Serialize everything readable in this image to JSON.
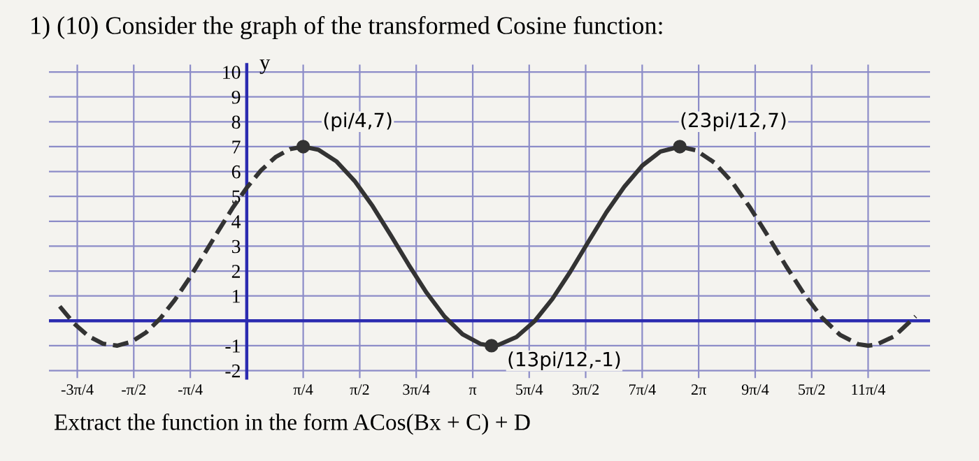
{
  "chart_data": {
    "type": "line",
    "title": "1) (10) Consider the graph of the transformed Cosine function:",
    "ylabel": "y",
    "annotations": [
      "Extract the function in the form ACos(Bx + C) + D",
      {
        "text": "(pi/4,7)",
        "x": 0.785,
        "y": 7
      },
      {
        "text": "(13pi/12,-1)",
        "x": 3.403,
        "y": -1
      },
      {
        "text": "(23pi/12,7)",
        "x": 6.021,
        "y": 7
      }
    ],
    "series": [
      {
        "type": "line",
        "line_style": "dashed",
        "color": "#333333",
        "x": [
          -2.6,
          -2.4,
          -2.2,
          -2.0,
          -1.8,
          -1.6,
          -1.4,
          -1.2,
          -1.0,
          -0.8,
          -0.6,
          -0.4,
          -0.2,
          0,
          0.2,
          0.4,
          0.6,
          0.785
        ],
        "values": [
          0.58,
          -0.11,
          -0.62,
          -0.92,
          -1.0,
          -0.84,
          -0.47,
          0.1,
          0.84,
          1.7,
          2.64,
          3.59,
          4.52,
          5.35,
          6.05,
          6.58,
          6.9,
          7
        ]
      },
      {
        "type": "line",
        "line_style": "solid",
        "color": "#333333",
        "x": [
          0.785,
          1.0,
          1.25,
          1.5,
          1.75,
          2.0,
          2.25,
          2.5,
          2.75,
          3.0,
          3.25,
          3.403,
          3.5,
          3.75,
          4.0,
          4.25,
          4.5,
          4.75,
          5.0,
          5.25,
          5.5,
          5.75,
          6.021
        ],
        "values": [
          7,
          6.87,
          6.4,
          5.62,
          4.61,
          3.45,
          2.26,
          1.13,
          0.17,
          -0.54,
          -0.93,
          -1,
          -0.97,
          -0.65,
          -0.02,
          0.88,
          1.98,
          3.18,
          4.36,
          5.39,
          6.24,
          6.8,
          7
        ]
      },
      {
        "type": "line",
        "line_style": "dashed",
        "color": "#333333",
        "x": [
          6.021,
          6.25,
          6.5,
          6.75,
          7.0,
          7.25,
          7.5,
          7.75,
          8.0,
          8.25,
          8.5,
          8.639,
          8.75,
          9.0,
          9.3
        ],
        "values": [
          7,
          6.85,
          6.36,
          5.57,
          4.54,
          3.39,
          2.19,
          1.07,
          0.12,
          -0.57,
          -0.94,
          -1,
          -0.96,
          -0.63,
          0.18
        ]
      },
      {
        "type": "scatter",
        "marker": "circle",
        "color": "#333333",
        "x": [
          0.785,
          3.403,
          6.021
        ],
        "values": [
          7,
          -1,
          7
        ]
      }
    ],
    "xlim": [
      -2.75,
      9.5
    ],
    "ylim": [
      -2.3,
      10.3
    ],
    "xticks": [
      {
        "value": -2.356,
        "label": "-3π/4"
      },
      {
        "value": -1.571,
        "label": "-π/2"
      },
      {
        "value": -0.785,
        "label": "-π/4"
      },
      {
        "value": 0.785,
        "label": "π/4"
      },
      {
        "value": 1.571,
        "label": "π/2"
      },
      {
        "value": 2.356,
        "label": "3π/4"
      },
      {
        "value": 3.142,
        "label": "π"
      },
      {
        "value": 3.927,
        "label": "5π/4"
      },
      {
        "value": 4.712,
        "label": "3π/2"
      },
      {
        "value": 5.498,
        "label": "7π/4"
      },
      {
        "value": 6.283,
        "label": "2π"
      },
      {
        "value": 7.069,
        "label": "9π/4"
      },
      {
        "value": 7.854,
        "label": "5π/2"
      },
      {
        "value": 8.639,
        "label": "11π/4"
      }
    ],
    "yticks": [
      -2,
      -1,
      1,
      2,
      3,
      4,
      5,
      6,
      7,
      8,
      9,
      10
    ],
    "ref_lines": [
      {
        "axis": "y",
        "value": 0,
        "color": "#2b2bb0"
      }
    ],
    "grid": true
  }
}
